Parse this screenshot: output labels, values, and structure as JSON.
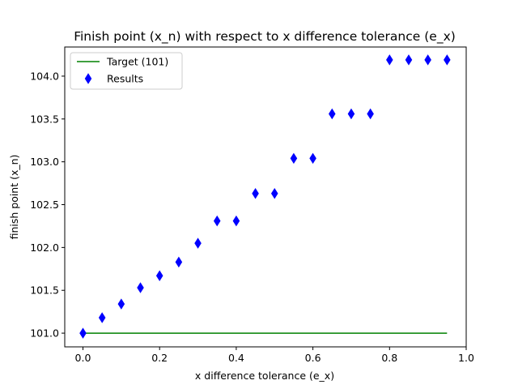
{
  "chart_data": {
    "type": "scatter",
    "title": "Finish point (x_n) with respect to x difference tolerance (e_x)",
    "xlabel": "x difference tolerance (e_x)",
    "ylabel": "finish point (x_n)",
    "xlim": [
      -0.0475,
      1.0
    ],
    "ylim": [
      100.84,
      104.34
    ],
    "grid": false,
    "legend_position": "top-left",
    "x_ticks": [
      0.0,
      0.2,
      0.4,
      0.6,
      0.8,
      1.0
    ],
    "x_tick_labels": [
      "0.0",
      "0.2",
      "0.4",
      "0.6",
      "0.8",
      "1.0"
    ],
    "y_ticks": [
      101.0,
      101.5,
      102.0,
      102.5,
      103.0,
      103.5,
      104.0
    ],
    "y_tick_labels": [
      "101.0",
      "101.5",
      "102.0",
      "102.5",
      "103.0",
      "103.5",
      "104.0"
    ],
    "series": [
      {
        "name": "Target (101)",
        "kind": "line",
        "color": "#008000",
        "x": [
          0.0,
          0.95
        ],
        "y": [
          101.0,
          101.0
        ]
      },
      {
        "name": "Results",
        "kind": "scatter",
        "marker": "thin-diamond",
        "color": "#0000ff",
        "x": [
          0.0,
          0.05,
          0.1,
          0.15,
          0.2,
          0.25,
          0.3,
          0.35,
          0.4,
          0.45,
          0.5,
          0.55,
          0.6,
          0.65,
          0.7,
          0.75,
          0.8,
          0.85,
          0.9,
          0.95
        ],
        "y": [
          101.0,
          101.18,
          101.34,
          101.53,
          101.67,
          101.83,
          102.05,
          102.31,
          102.31,
          102.63,
          102.63,
          103.04,
          103.04,
          103.56,
          103.56,
          103.56,
          104.19,
          104.19,
          104.19,
          104.19
        ]
      }
    ]
  }
}
